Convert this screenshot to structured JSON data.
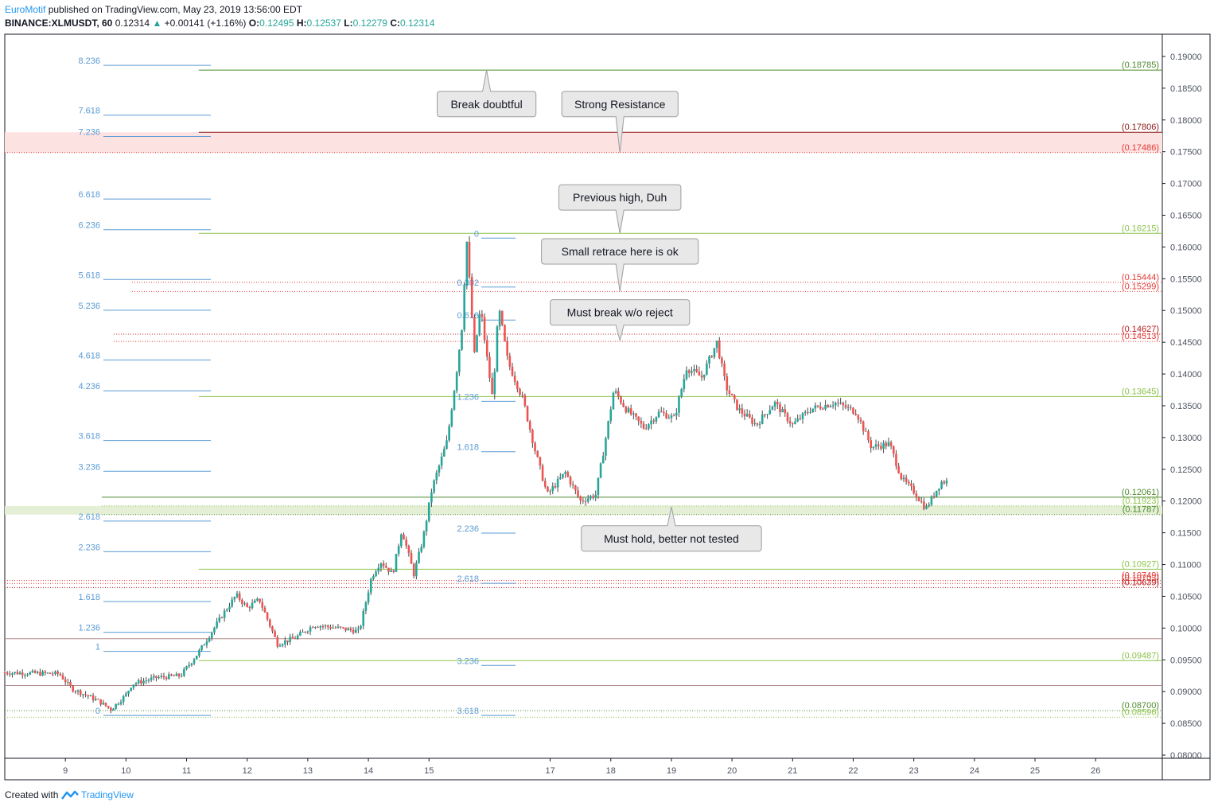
{
  "header": {
    "author": "EuroMotif",
    "published_text": "published on TradingView.com, May 23, 2019 13:56:00 EDT",
    "symbol": "BINANCE:XLMUSDT, 60",
    "last": "0.12314",
    "change_arrow": "▲",
    "change": "+0.00141 (+1.16%)",
    "o_label": "O:",
    "o": "0.12495",
    "h_label": "H:",
    "h": "0.12537",
    "l_label": "L:",
    "l": "0.12279",
    "c_label": "C:",
    "c": "0.12314"
  },
  "footer": {
    "created_with": "Created with",
    "brand": "TradingView",
    "logo_icon": "tradingview-logo-icon"
  },
  "chart_data": {
    "type": "candlestick",
    "symbol": "BINANCE:XLMUSDT",
    "interval": "60",
    "ylim": [
      0.0795,
      0.1935
    ],
    "y_ticks": [
      "0.19000",
      "0.18500",
      "0.18000",
      "0.17500",
      "0.17000",
      "0.16500",
      "0.16000",
      "0.15500",
      "0.15000",
      "0.14500",
      "0.14000",
      "0.13500",
      "0.13000",
      "0.12500",
      "0.12000",
      "0.11500",
      "0.11000",
      "0.10500",
      "0.10000",
      "0.09500",
      "0.09000",
      "0.08500",
      "0.08000"
    ],
    "xlim": [
      8.0,
      27.1
    ],
    "x_ticks": [
      {
        "v": 9,
        "label": "9"
      },
      {
        "v": 10,
        "label": "10"
      },
      {
        "v": 11,
        "label": "11"
      },
      {
        "v": 12,
        "label": "12"
      },
      {
        "v": 13,
        "label": "13"
      },
      {
        "v": 14,
        "label": "14"
      },
      {
        "v": 15,
        "label": "15"
      },
      {
        "v": 17,
        "label": "17"
      },
      {
        "v": 18,
        "label": "18"
      },
      {
        "v": 19,
        "label": "19"
      },
      {
        "v": 20,
        "label": "20"
      },
      {
        "v": 21,
        "label": "21"
      },
      {
        "v": 22,
        "label": "22"
      },
      {
        "v": 23,
        "label": "23"
      },
      {
        "v": 24,
        "label": "24"
      },
      {
        "v": 25,
        "label": "25"
      },
      {
        "v": 26,
        "label": "26"
      }
    ],
    "price_path": [
      [
        8.0,
        0.093
      ],
      [
        8.9,
        0.0928
      ],
      [
        9.1,
        0.0905
      ],
      [
        9.55,
        0.0885
      ],
      [
        9.75,
        0.0872
      ],
      [
        10.0,
        0.0895
      ],
      [
        10.1,
        0.0912
      ],
      [
        10.5,
        0.0922
      ],
      [
        10.9,
        0.0925
      ],
      [
        11.2,
        0.0962
      ],
      [
        11.6,
        0.1022
      ],
      [
        11.82,
        0.1052
      ],
      [
        12.0,
        0.1032
      ],
      [
        12.2,
        0.1045
      ],
      [
        12.5,
        0.0975
      ],
      [
        12.8,
        0.0985
      ],
      [
        13.1,
        0.1005
      ],
      [
        13.5,
        0.1
      ],
      [
        13.85,
        0.0995
      ],
      [
        14.05,
        0.108
      ],
      [
        14.2,
        0.1105
      ],
      [
        14.4,
        0.1085
      ],
      [
        14.55,
        0.1155
      ],
      [
        14.75,
        0.1085
      ],
      [
        14.9,
        0.114
      ],
      [
        15.05,
        0.122
      ],
      [
        15.3,
        0.1295
      ],
      [
        15.45,
        0.14
      ],
      [
        15.55,
        0.148
      ],
      [
        15.62,
        0.1615
      ],
      [
        15.75,
        0.143
      ],
      [
        15.85,
        0.1505
      ],
      [
        15.95,
        0.143
      ],
      [
        16.05,
        0.136
      ],
      [
        16.15,
        0.1505
      ],
      [
        16.3,
        0.142
      ],
      [
        16.55,
        0.136
      ],
      [
        16.75,
        0.128
      ],
      [
        16.95,
        0.121
      ],
      [
        17.25,
        0.1245
      ],
      [
        17.5,
        0.12
      ],
      [
        17.75,
        0.121
      ],
      [
        17.9,
        0.129
      ],
      [
        18.05,
        0.1375
      ],
      [
        18.25,
        0.1345
      ],
      [
        18.55,
        0.1315
      ],
      [
        18.8,
        0.134
      ],
      [
        19.05,
        0.133
      ],
      [
        19.25,
        0.141
      ],
      [
        19.5,
        0.1395
      ],
      [
        19.75,
        0.145
      ],
      [
        19.9,
        0.138
      ],
      [
        20.1,
        0.1345
      ],
      [
        20.4,
        0.132
      ],
      [
        20.7,
        0.1355
      ],
      [
        21.0,
        0.132
      ],
      [
        21.3,
        0.1345
      ],
      [
        21.7,
        0.1355
      ],
      [
        22.05,
        0.134
      ],
      [
        22.3,
        0.1285
      ],
      [
        22.6,
        0.129
      ],
      [
        22.8,
        0.1235
      ],
      [
        23.0,
        0.1215
      ],
      [
        23.2,
        0.1188
      ],
      [
        23.45,
        0.123
      ],
      [
        23.58,
        0.1231
      ]
    ],
    "horizontal_levels": [
      {
        "value": 0.18785,
        "label": "(0.18785)",
        "color": "#4e8a2e",
        "from_x": 11.2
      },
      {
        "value": 0.17806,
        "label": "(0.17806)",
        "color": "#8b1a1a",
        "from_x": 11.2
      },
      {
        "value": 0.17486,
        "label": "(0.17486)",
        "color": "#e53935",
        "from_x": 8.0,
        "dotted": true
      },
      {
        "value": 0.16215,
        "label": "(0.16215)",
        "color": "#8bc34a",
        "from_x": 11.2
      },
      {
        "value": 0.15444,
        "label": "(0.15444)",
        "color": "#e53935",
        "from_x": 10.1,
        "dotted": true
      },
      {
        "value": 0.15299,
        "label": "(0.15299)",
        "color": "#e53935",
        "from_x": 10.1,
        "dotted": true
      },
      {
        "value": 0.14627,
        "label": "(0.14627)",
        "color": "#b71c1c",
        "from_x": 9.8,
        "dotted": true
      },
      {
        "value": 0.14513,
        "label": "(0.14513)",
        "color": "#e53935",
        "from_x": 9.8,
        "dotted": true
      },
      {
        "value": 0.13645,
        "label": "(0.13645)",
        "color": "#8bc34a",
        "from_x": 11.2
      },
      {
        "value": 0.12061,
        "label": "(0.12061)",
        "color": "#4e8a2e",
        "from_x": 9.6
      },
      {
        "value": 0.11923,
        "label": "(0.11923)",
        "color": "#8bc34a",
        "from_x": 9.6,
        "dotted": true
      },
      {
        "value": 0.11787,
        "label": "(0.11787)",
        "color": "#4e8a2e",
        "from_x": 9.6,
        "dotted": true
      },
      {
        "value": 0.10927,
        "label": "(0.10927)",
        "color": "#8bc34a",
        "from_x": 11.2
      },
      {
        "value": 0.10749,
        "label": "(0.10749)",
        "color": "#e53935",
        "from_x": 8.0,
        "dotted": true
      },
      {
        "value": 0.10703,
        "label": "(0.10703)",
        "color": "#e53935",
        "from_x": 8.0,
        "dotted": true
      },
      {
        "value": 0.10639,
        "label": "(0.10639)",
        "color": "#b71c1c",
        "from_x": 8.0,
        "dotted": true
      },
      {
        "value": 0.09832,
        "label": "",
        "color": "#b48a8a",
        "from_x": 8.0
      },
      {
        "value": 0.09487,
        "label": "(0.09487)",
        "color": "#8bc34a",
        "from_x": 11.2
      },
      {
        "value": 0.09097,
        "label": "",
        "color": "#b48a8a",
        "from_x": 8.0
      },
      {
        "value": 0.087,
        "label": "(0.08700)",
        "color": "#4e8a2e",
        "from_x": 8.0,
        "dotted": true
      },
      {
        "value": 0.08596,
        "label": "(0.08596)",
        "color": "#8bc34a",
        "from_x": 8.0,
        "dotted": true
      }
    ],
    "zones": [
      {
        "top": 0.17806,
        "bottom": 0.17486,
        "color": "#fde2e2"
      },
      {
        "top": 0.11923,
        "bottom": 0.11787,
        "color": "#e4efd6"
      }
    ],
    "fib_extension_left": {
      "color": "#5b9bd5",
      "levels": [
        {
          "label": "8.236",
          "value": 0.18935
        },
        {
          "label": "7.618",
          "value": 0.18151
        },
        {
          "label": "7.236",
          "value": 0.17815
        },
        {
          "label": "6.618",
          "value": 0.16831
        },
        {
          "label": "6.236",
          "value": 0.16347
        },
        {
          "label": "5.618",
          "value": 0.15563
        },
        {
          "label": "5.236",
          "value": 0.1508
        },
        {
          "label": "4.618",
          "value": 0.14296
        },
        {
          "label": "4.236",
          "value": 0.13812
        },
        {
          "label": "3.618",
          "value": 0.13028
        },
        {
          "label": "3.236",
          "value": 0.12544
        },
        {
          "label": "2.618",
          "value": 0.1176
        },
        {
          "label": "2.236",
          "value": 0.11277
        },
        {
          "label": "1.618",
          "value": 0.10493
        },
        {
          "label": "1.236",
          "value": 0.10009
        },
        {
          "label": "1",
          "value": 0.09709
        },
        {
          "label": "0",
          "value": 0.087
        }
      ]
    },
    "fib_retracement_mid": {
      "color": "#5b9bd5",
      "levels": [
        {
          "label": "0",
          "value": 0.16215
        },
        {
          "label": "0.382",
          "value": 0.15444
        },
        {
          "label": "0.618",
          "value": 0.14925
        },
        {
          "label": "1.236",
          "value": 0.13645
        },
        {
          "label": "1.618",
          "value": 0.12852
        },
        {
          "label": "2.236",
          "value": 0.11571
        },
        {
          "label": "2.618",
          "value": 0.10779
        },
        {
          "label": "3.236",
          "value": 0.09487
        },
        {
          "label": "3.618",
          "value": 0.087
        }
      ]
    },
    "annotations": [
      {
        "text": "Break doubtful",
        "x": 15.95,
        "y": 0.1825,
        "pointer": "up",
        "tip_x": 15.95,
        "tip_y": 0.18785
      },
      {
        "text": "Strong Resistance",
        "x": 18.15,
        "y": 0.1825,
        "pointer": "down",
        "tip_x": 18.15,
        "tip_y": 0.17486
      },
      {
        "text": "Previous high, Duh",
        "x": 18.15,
        "y": 0.1678,
        "pointer": "down",
        "tip_x": 18.15,
        "tip_y": 0.16215
      },
      {
        "text": "Small retrace here is ok",
        "x": 18.15,
        "y": 0.1593,
        "pointer": "down",
        "tip_x": 18.15,
        "tip_y": 0.153
      },
      {
        "text": "Must break w/o reject",
        "x": 18.15,
        "y": 0.1497,
        "pointer": "down",
        "tip_x": 18.15,
        "tip_y": 0.1453
      },
      {
        "text": "Must hold, better not tested",
        "x": 19.0,
        "y": 0.1141,
        "pointer": "up",
        "tip_x": 19.0,
        "tip_y": 0.1191
      }
    ],
    "colors": {
      "up": "#26a69a",
      "down": "#ef5350",
      "grid": "#ffffff",
      "axis": "#131722",
      "text": "#4c525e"
    }
  }
}
